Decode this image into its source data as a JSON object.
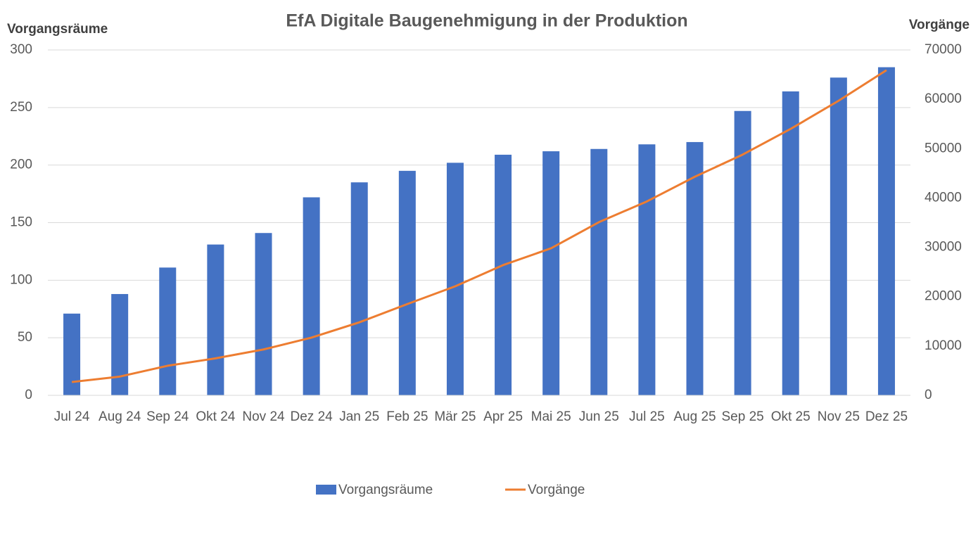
{
  "chart_data": {
    "type": "bar_line",
    "title": "EfA Digitale Baugenehmigung in der Produktion",
    "y_label": "Vorgangsräume",
    "y2_label": "Vorgänge",
    "categories": [
      "Jul 24",
      "Aug 24",
      "Sep 24",
      "Okt 24",
      "Nov 24",
      "Dez 24",
      "Jan 25",
      "Feb 25",
      "Mär 25",
      "Apr 25",
      "Mai 25",
      "Jun 25",
      "Jul 25",
      "Aug 25",
      "Sep 25",
      "Okt 25",
      "Nov 25",
      "Dez 25"
    ],
    "series": [
      {
        "name": "Vorgangsräume",
        "type": "bar",
        "color": "#4472c4",
        "axis": "y",
        "values": [
          71,
          88,
          111,
          131,
          141,
          172,
          185,
          195,
          202,
          209,
          212,
          214,
          218,
          220,
          247,
          264,
          276,
          285
        ]
      },
      {
        "name": "Vorgänge",
        "type": "line",
        "color": "#ed7d31",
        "axis": "y2",
        "values": [
          2700,
          3800,
          6000,
          7500,
          9300,
          11700,
          14800,
          18500,
          22100,
          26400,
          29800,
          35100,
          39300,
          44300,
          48800,
          54000,
          59700,
          65900
        ]
      }
    ],
    "ylim": [
      0,
      300
    ],
    "yticks": [
      0,
      50,
      100,
      150,
      200,
      250,
      300
    ],
    "y2lim": [
      0,
      70000
    ],
    "y2ticks": [
      0,
      10000,
      20000,
      30000,
      40000,
      50000,
      60000,
      70000
    ],
    "grid": true,
    "legend": "bottom"
  }
}
